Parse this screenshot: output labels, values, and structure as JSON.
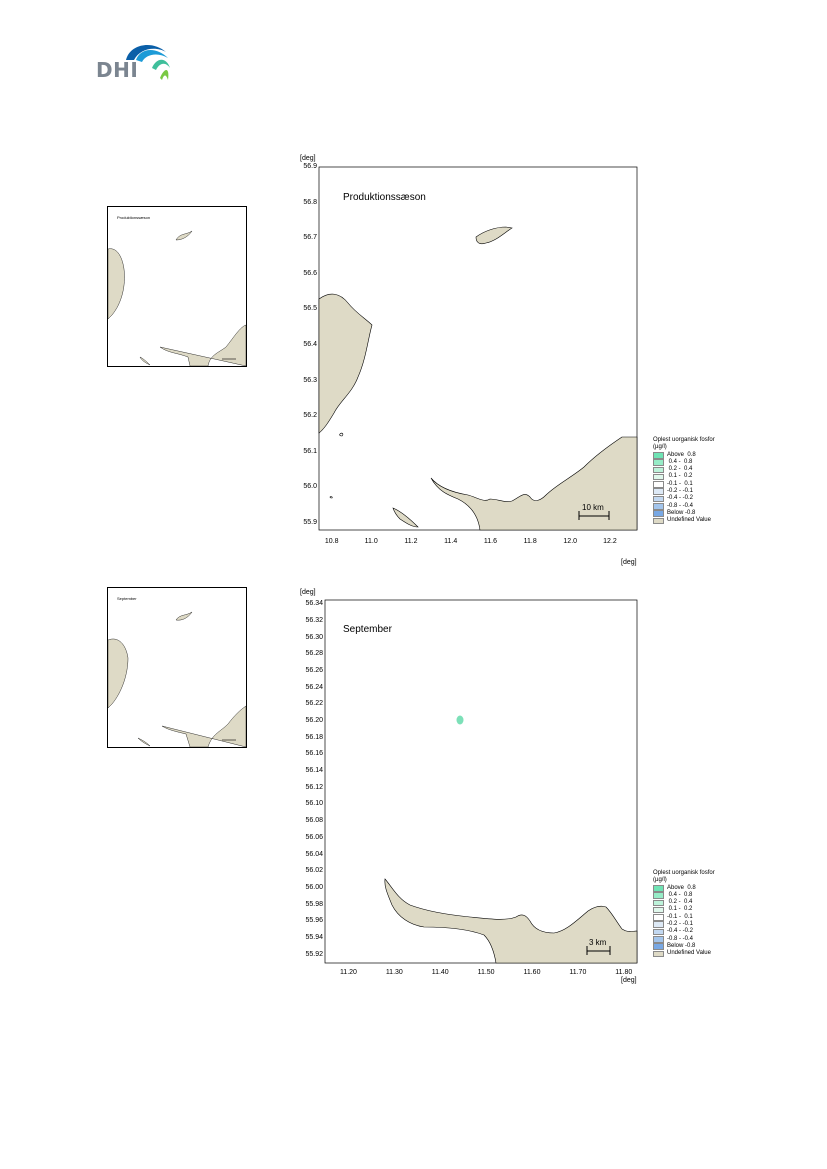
{
  "logo": {
    "text": "DHI",
    "colors": [
      "#0a5fa8",
      "#1d9bd7",
      "#3fbf9b",
      "#7ac943"
    ]
  },
  "colors": {
    "land": "#dedac6",
    "coast": "#000000",
    "anomaly": "#7ce0b8"
  },
  "maps": [
    {
      "title": "Produktionssæson",
      "inset_title": "Produktionssæson",
      "unit_x": "[deg]",
      "unit_y": "[deg]",
      "x_ticks": [
        "10.8",
        "11.0",
        "11.2",
        "11.4",
        "11.6",
        "11.8",
        "12.0",
        "12.2"
      ],
      "y_ticks": [
        "56.9",
        "56.8",
        "56.7",
        "56.6",
        "56.5",
        "56.4",
        "56.3",
        "56.2",
        "56.1",
        "56.0",
        "55.9"
      ],
      "xlim": [
        10.73,
        12.33
      ],
      "ylim": [
        55.88,
        56.9
      ],
      "scalebar": "10 km"
    },
    {
      "title": "September",
      "inset_title": "September",
      "unit_x": "[deg]",
      "unit_y": "[deg]",
      "x_ticks": [
        "11.20",
        "11.30",
        "11.40",
        "11.50",
        "11.60",
        "11.70",
        "11.80"
      ],
      "y_ticks": [
        "56.34",
        "56.32",
        "56.30",
        "56.28",
        "56.26",
        "56.24",
        "56.22",
        "56.20",
        "56.18",
        "56.16",
        "56.14",
        "56.12",
        "56.10",
        "56.08",
        "56.06",
        "56.04",
        "56.02",
        "56.00",
        "55.98",
        "55.96",
        "55.94",
        "55.92"
      ],
      "xlim": [
        11.15,
        11.83
      ],
      "ylim": [
        55.91,
        56.345
      ],
      "scalebar": "3 km"
    }
  ],
  "legend": {
    "title_line1": "Oplest uorganisk fosfor",
    "title_line2": "(µg/l)",
    "entries": [
      {
        "label": "Above  0.8",
        "color": "#6fe3b4"
      },
      {
        "label": " 0.4 -  0.8",
        "color": "#97ecc7"
      },
      {
        "label": " 0.2 -  0.4",
        "color": "#bdf3da"
      },
      {
        "label": " 0.1 -  0.2",
        "color": "#e0f8ec"
      },
      {
        "label": "-0.1 -  0.1",
        "color": "#ffffff"
      },
      {
        "label": "-0.2 - -0.1",
        "color": "#dde9f6"
      },
      {
        "label": "-0.4 - -0.2",
        "color": "#c2d8f1"
      },
      {
        "label": "-0.8 - -0.4",
        "color": "#a3c5ec"
      },
      {
        "label": "Below -0.8",
        "color": "#78a8e4"
      },
      {
        "label": "Undefined Value",
        "color": "#dedac6"
      }
    ]
  }
}
